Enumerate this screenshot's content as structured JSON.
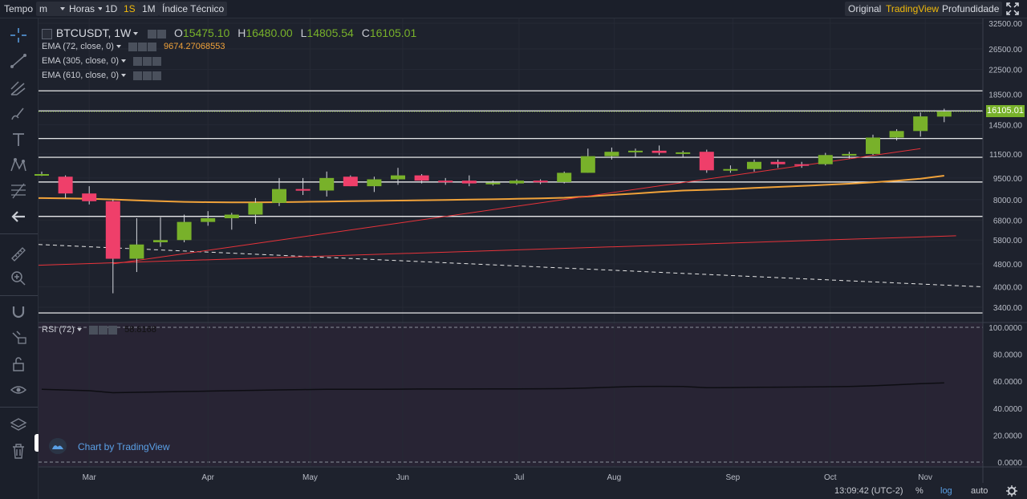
{
  "toolbar": {
    "tempo_label": "Tempo",
    "interval_select": "m",
    "horas_select": "Horas",
    "btn_1d": "1D",
    "btn_1s": "1S",
    "btn_1m": "1M",
    "indicator_btn": "Índice Técnico",
    "view_original": "Original",
    "view_tradingview": "TradingView",
    "view_depth": "Profundidade",
    "accent_color": "#f0b90b"
  },
  "legend": {
    "symbol": "BTCUSDT, 1W",
    "o_label": "O",
    "o_value": "15475.10",
    "h_label": "H",
    "h_value": "16480.00",
    "l_label": "L",
    "l_value": "14805.54",
    "c_label": "C",
    "c_value": "16105.01",
    "ema72_label": "EMA (72, close, 0)",
    "ema72_value": "9674.27068553",
    "ema305_label": "EMA (305, close, 0)",
    "ema610_label": "EMA (610, close, 0)"
  },
  "rsi_legend": {
    "label": "RSI (72)",
    "value": "58.8168"
  },
  "watermark": "Chart by TradingView",
  "footer": {
    "time": "13:09:42 (UTC-2)",
    "pct": "%",
    "log": "log",
    "auto": "auto"
  },
  "colors": {
    "up": "#78b12a",
    "down": "#ef3f6a",
    "ema": "#f0a23a",
    "trend": "#e8333a"
  },
  "chart_data": [
    {
      "type": "candlestick",
      "scale": "log",
      "x_labels": [
        "Mar",
        "Apr",
        "May",
        "Jun",
        "Jul",
        "Aug",
        "Sep",
        "Oct",
        "Nov"
      ],
      "y_ticks": [
        3400,
        4000,
        4800,
        5800,
        6800,
        8000,
        9500,
        11500,
        14500,
        18500,
        22500,
        26500,
        32500
      ],
      "y_tick_labels": [
        "3400.00",
        "4000.00",
        "4800.00",
        "5800.00",
        "6800.00",
        "8000.00",
        "9500.00",
        "11500.00",
        "14500.00",
        "18500.00",
        "22500.00",
        "26500.00",
        "32500.00"
      ],
      "last_price_label": "16105.01",
      "candles": [
        {
          "o": 9800,
          "h": 10000,
          "l": 9650,
          "c": 9800
        },
        {
          "o": 9600,
          "h": 9700,
          "l": 8100,
          "c": 8400
        },
        {
          "o": 8400,
          "h": 8900,
          "l": 7700,
          "c": 7900
        },
        {
          "o": 7900,
          "h": 8000,
          "l": 3800,
          "c": 5000
        },
        {
          "o": 5000,
          "h": 6900,
          "l": 4500,
          "c": 5600
        },
        {
          "o": 5700,
          "h": 6950,
          "l": 5500,
          "c": 5800
        },
        {
          "o": 5800,
          "h": 7100,
          "l": 5700,
          "c": 6700
        },
        {
          "o": 6700,
          "h": 7300,
          "l": 6500,
          "c": 6900
        },
        {
          "o": 6900,
          "h": 7200,
          "l": 6300,
          "c": 7100
        },
        {
          "o": 7100,
          "h": 8100,
          "l": 6600,
          "c": 7800
        },
        {
          "o": 7800,
          "h": 9500,
          "l": 7600,
          "c": 8700
        },
        {
          "o": 8700,
          "h": 9500,
          "l": 8300,
          "c": 8600
        },
        {
          "o": 8600,
          "h": 10000,
          "l": 8200,
          "c": 9500
        },
        {
          "o": 9600,
          "h": 9700,
          "l": 8900,
          "c": 8900
        },
        {
          "o": 8900,
          "h": 9600,
          "l": 8500,
          "c": 9400
        },
        {
          "o": 9400,
          "h": 10300,
          "l": 9000,
          "c": 9700
        },
        {
          "o": 9700,
          "h": 9800,
          "l": 9100,
          "c": 9300
        },
        {
          "o": 9300,
          "h": 9500,
          "l": 9000,
          "c": 9200
        },
        {
          "o": 9300,
          "h": 9700,
          "l": 8900,
          "c": 9100
        },
        {
          "o": 9100,
          "h": 9300,
          "l": 8950,
          "c": 9150
        },
        {
          "o": 9100,
          "h": 9400,
          "l": 9000,
          "c": 9300
        },
        {
          "o": 9300,
          "h": 9400,
          "l": 9050,
          "c": 9200
        },
        {
          "o": 9200,
          "h": 10000,
          "l": 9100,
          "c": 9900
        },
        {
          "o": 9900,
          "h": 12000,
          "l": 9900,
          "c": 11300
        },
        {
          "o": 11300,
          "h": 12100,
          "l": 11000,
          "c": 11700
        },
        {
          "o": 11700,
          "h": 12000,
          "l": 11200,
          "c": 11800
        },
        {
          "o": 11800,
          "h": 12300,
          "l": 11400,
          "c": 11600
        },
        {
          "o": 11600,
          "h": 11800,
          "l": 11200,
          "c": 11650
        },
        {
          "o": 11700,
          "h": 11900,
          "l": 9900,
          "c": 10100
        },
        {
          "o": 10100,
          "h": 10500,
          "l": 9900,
          "c": 10200
        },
        {
          "o": 10200,
          "h": 11000,
          "l": 10000,
          "c": 10800
        },
        {
          "o": 10800,
          "h": 11000,
          "l": 10300,
          "c": 10600
        },
        {
          "o": 10600,
          "h": 10800,
          "l": 10300,
          "c": 10500
        },
        {
          "o": 10600,
          "h": 11600,
          "l": 10500,
          "c": 11400
        },
        {
          "o": 11400,
          "h": 11700,
          "l": 11100,
          "c": 11500
        },
        {
          "o": 11500,
          "h": 13400,
          "l": 11400,
          "c": 13100
        },
        {
          "o": 13100,
          "h": 14000,
          "l": 12800,
          "c": 13800
        },
        {
          "o": 13800,
          "h": 16000,
          "l": 13200,
          "c": 15500
        },
        {
          "o": 15475.1,
          "h": 16480.0,
          "l": 14805.54,
          "c": 16105.01
        }
      ],
      "ema72": [
        8100,
        8080,
        8050,
        8010,
        7950,
        7900,
        7860,
        7840,
        7830,
        7830,
        7840,
        7860,
        7880,
        7900,
        7920,
        7940,
        7960,
        7980,
        8000,
        8020,
        8050,
        8080,
        8120,
        8200,
        8300,
        8400,
        8500,
        8600,
        8650,
        8700,
        8780,
        8850,
        8920,
        9000,
        9080,
        9180,
        9300,
        9450,
        9674.27
      ],
      "horizontal_levels": [
        19000,
        16200,
        13000,
        11200,
        9200,
        7000,
        3250
      ],
      "dashed_line": {
        "from": 5600,
        "to": 4000
      },
      "trendlines": [
        {
          "from_bar": 3,
          "from": 4800,
          "to_bar": 37,
          "to": 12000
        },
        {
          "from_bar": 0,
          "from": 4750,
          "to_bar": 38.5,
          "to": 6000
        }
      ]
    },
    {
      "type": "line",
      "name": "RSI (72)",
      "y_ticks": [
        0,
        20,
        40,
        60,
        80,
        100
      ],
      "y_tick_labels": [
        "0.0000",
        "20.0000",
        "40.0000",
        "60.0000",
        "80.0000",
        "100.0000"
      ],
      "ylim": [
        0,
        100
      ],
      "values": [
        54,
        53.5,
        53,
        51.5,
        51.8,
        52.1,
        52.4,
        52.7,
        53,
        53.3,
        53.6,
        53.8,
        54,
        54,
        54,
        54.1,
        54.2,
        54.2,
        54.2,
        54.3,
        54.3,
        54.4,
        54.5,
        55,
        55.6,
        56.1,
        56.2,
        56.1,
        55.2,
        55.3,
        55.5,
        55.6,
        55.7,
        55.9,
        56.1,
        56.6,
        57.4,
        58.2,
        58.8168
      ]
    }
  ]
}
